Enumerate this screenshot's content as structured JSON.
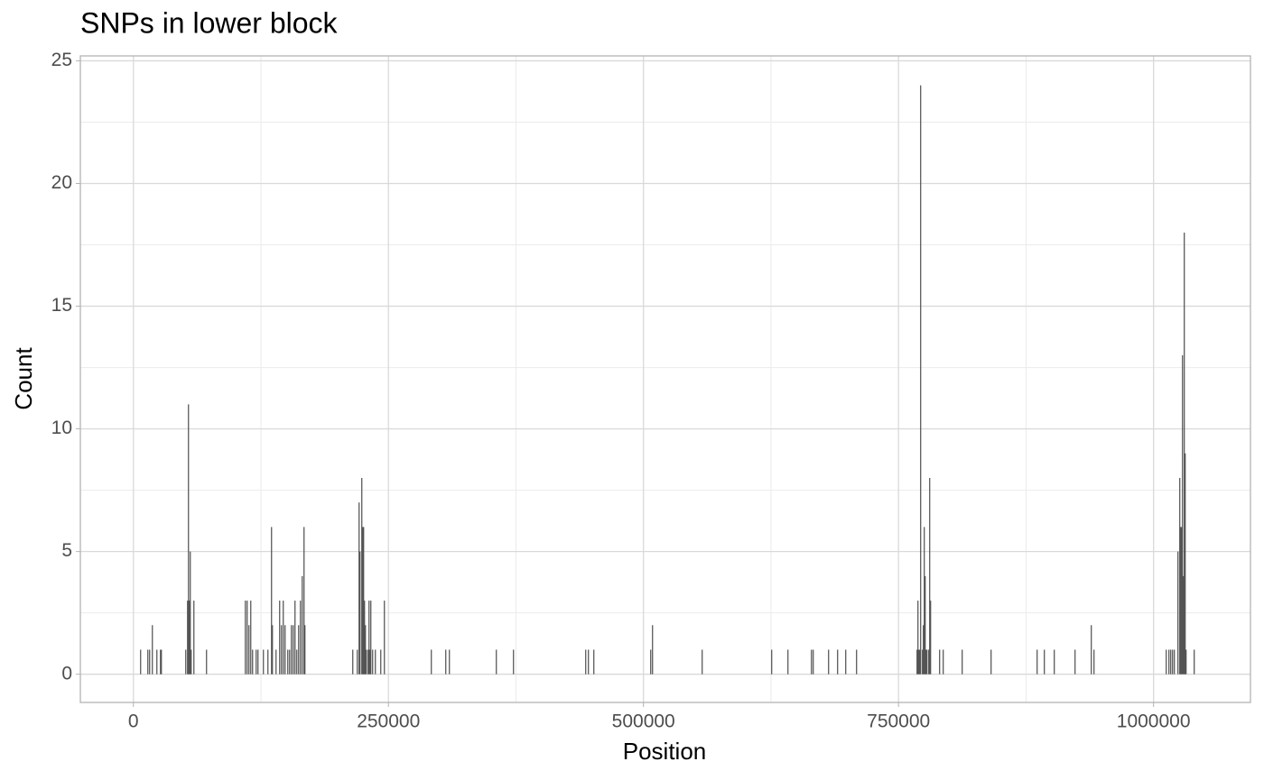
{
  "chart_data": {
    "type": "bar",
    "title": "SNPs in lower block",
    "x_label": "Position",
    "y_label": "Count",
    "x": [
      7080,
      14160,
      15930,
      18585,
      23010,
      26550,
      27435,
      51330,
      53100,
      53985,
      54870,
      55755,
      56640,
      59295,
      71685,
      109740,
      111510,
      113280,
      115050,
      116820,
      120360,
      122130,
      127440,
      131865,
      135405,
      136290,
      139830,
      143370,
      145140,
      146910,
      148680,
      151335,
      153105,
      154875,
      156645,
      158415,
      160185,
      161955,
      163725,
      165495,
      167265,
      168150,
      215055,
      219480,
      221250,
      222135,
      223905,
      224790,
      225675,
      226560,
      227445,
      228330,
      230100,
      230985,
      231870,
      232755,
      234525,
      237180,
      242490,
      246030,
      292050,
      306210,
      309750,
      355770,
      372585,
      443385,
      446040,
      451350,
      507105,
      508875,
      557550,
      625695,
      641625,
      664635,
      666405,
      681450,
      690300,
      698265,
      708885,
      768180,
      769065,
      769950,
      770835,
      771720,
      773490,
      774375,
      775260,
      776145,
      777030,
      777915,
      779685,
      780570,
      781455,
      790305,
      793845,
      812430,
      840750,
      885885,
      892965,
      902700,
      923055,
      938985,
      941640,
      1012440,
      1015095,
      1016865,
      1018635,
      1020405,
      1023945,
      1025715,
      1026600,
      1027485,
      1028370,
      1029255,
      1030140,
      1031025,
      1031910,
      1039875
    ],
    "values": [
      1,
      1,
      1,
      2,
      1,
      1,
      1,
      1,
      3,
      11,
      3,
      5,
      1,
      3,
      1,
      3,
      3,
      2,
      3,
      1,
      1,
      1,
      1,
      1,
      6,
      2,
      1,
      3,
      2,
      3,
      2,
      1,
      1,
      2,
      2,
      3,
      1,
      2,
      3,
      4,
      6,
      2,
      1,
      1,
      7,
      5,
      8,
      6,
      6,
      3,
      2,
      1,
      1,
      3,
      1,
      3,
      1,
      1,
      1,
      3,
      1,
      1,
      1,
      1,
      1,
      1,
      1,
      1,
      1,
      2,
      1,
      1,
      1,
      1,
      1,
      1,
      1,
      1,
      1,
      1,
      3,
      1,
      1,
      24,
      1,
      2,
      6,
      4,
      1,
      1,
      1,
      8,
      3,
      1,
      1,
      1,
      1,
      1,
      1,
      1,
      1,
      2,
      1,
      1,
      1,
      1,
      1,
      1,
      5,
      8,
      6,
      6,
      13,
      4,
      18,
      9,
      1,
      1
    ],
    "color": "#4d4d4d",
    "xlim": [
      -52000,
      1095000
    ],
    "xticks": [
      0,
      250000,
      500000,
      750000,
      1000000
    ],
    "xminor": [
      125000,
      375000,
      625000,
      875000
    ],
    "ylim": [
      -1.15,
      25.2
    ],
    "yticks": [
      0,
      5,
      10,
      15,
      20,
      25
    ],
    "yminor": [
      2.5,
      7.5,
      12.5,
      17.5,
      22.5
    ],
    "grid": true
  }
}
